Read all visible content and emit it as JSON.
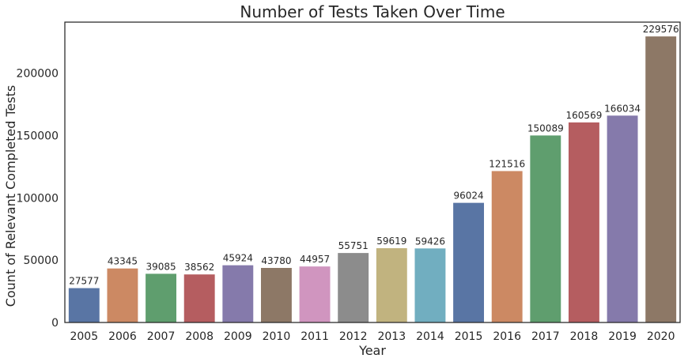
{
  "chart_data": {
    "type": "bar",
    "title": "Number of Tests Taken Over Time",
    "xlabel": "Year",
    "ylabel": "Count of Relevant Completed Tests",
    "categories": [
      "2005",
      "2006",
      "2007",
      "2008",
      "2009",
      "2010",
      "2011",
      "2012",
      "2013",
      "2014",
      "2015",
      "2016",
      "2017",
      "2018",
      "2019",
      "2020"
    ],
    "values": [
      27577,
      43345,
      39085,
      38562,
      45924,
      43780,
      44957,
      55751,
      59619,
      59426,
      96024,
      121516,
      150089,
      160569,
      166034,
      229576
    ],
    "data_labels": [
      "27577",
      "43345",
      "39085",
      "38562",
      "45924",
      "43780",
      "44957",
      "55751",
      "59619",
      "59426",
      "96024",
      "121516",
      "150089",
      "160569",
      "166034",
      "229576"
    ],
    "yticks": [
      0,
      50000,
      100000,
      150000,
      200000
    ],
    "ytick_labels": [
      "0",
      "50000",
      "100000",
      "150000",
      "200000"
    ],
    "ylim": [
      0,
      241055
    ],
    "grid": false,
    "legend": "none",
    "colors": [
      "#5975a4",
      "#cc8963",
      "#5f9e6e",
      "#b55d60",
      "#857aab",
      "#8d7866",
      "#d095bf",
      "#8c8c8c",
      "#c1b37f",
      "#71aec0",
      "#5975a4",
      "#cc8963",
      "#5f9e6e",
      "#b55d60",
      "#857aab",
      "#8d7866"
    ]
  }
}
